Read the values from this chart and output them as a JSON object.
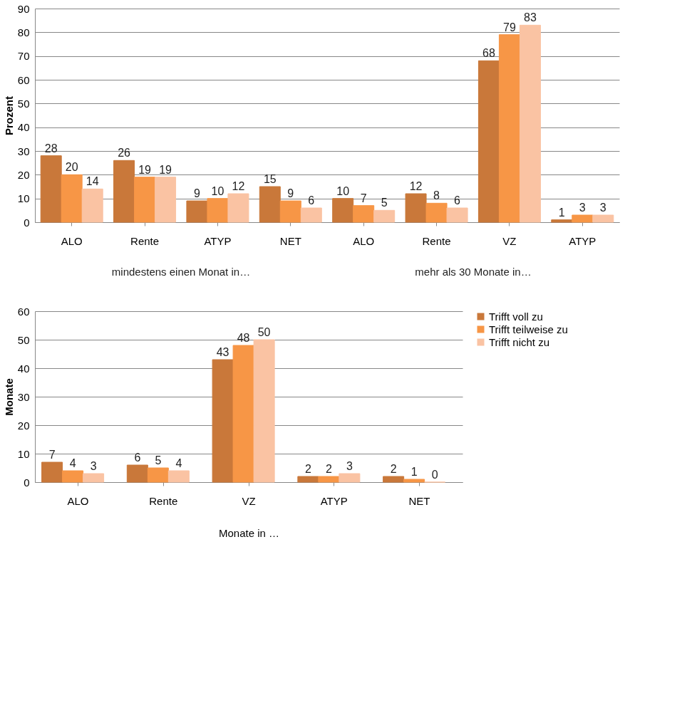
{
  "chart_data": [
    {
      "type": "bar",
      "ylabel": "Prozent",
      "categories": [
        "ALO",
        "Rente",
        "ATYP",
        "NET",
        "ALO",
        "Rente",
        "VZ",
        "ATYP"
      ],
      "series": [
        {
          "color": "#c9783a",
          "values": [
            28,
            26,
            9,
            15,
            10,
            12,
            68,
            1
          ]
        },
        {
          "color": "#f79646",
          "values": [
            20,
            19,
            10,
            9,
            7,
            8,
            79,
            3
          ]
        },
        {
          "color": "#fac3a3",
          "values": [
            14,
            19,
            12,
            6,
            5,
            6,
            83,
            3
          ]
        }
      ],
      "ylim": [
        0,
        90
      ],
      "yticks": [
        0,
        10,
        20,
        30,
        40,
        50,
        60,
        70,
        80,
        90
      ],
      "grid": "y",
      "data_labels": true,
      "legend": false,
      "annotations": [
        "mindestens einen Monat  in…",
        "mehr als 30 Monate in…"
      ]
    },
    {
      "type": "bar",
      "ylabel": "Monate",
      "xlabel": "Monate in …",
      "categories": [
        "ALO",
        "Rente",
        "VZ",
        "ATYP",
        "NET"
      ],
      "series": [
        {
          "name": "Trifft voll zu",
          "color": "#c9783a",
          "values": [
            7,
            6,
            43,
            2,
            2
          ]
        },
        {
          "name": "Trifft teilweise zu",
          "color": "#f79646",
          "values": [
            4,
            5,
            48,
            2,
            1
          ]
        },
        {
          "name": "Trifft nicht zu",
          "color": "#fac3a3",
          "values": [
            3,
            4,
            50,
            3,
            0
          ]
        }
      ],
      "ylim": [
        0,
        60
      ],
      "yticks": [
        0,
        10,
        20,
        30,
        40,
        50,
        60
      ],
      "grid": "y",
      "data_labels": true,
      "legend": "right"
    }
  ]
}
